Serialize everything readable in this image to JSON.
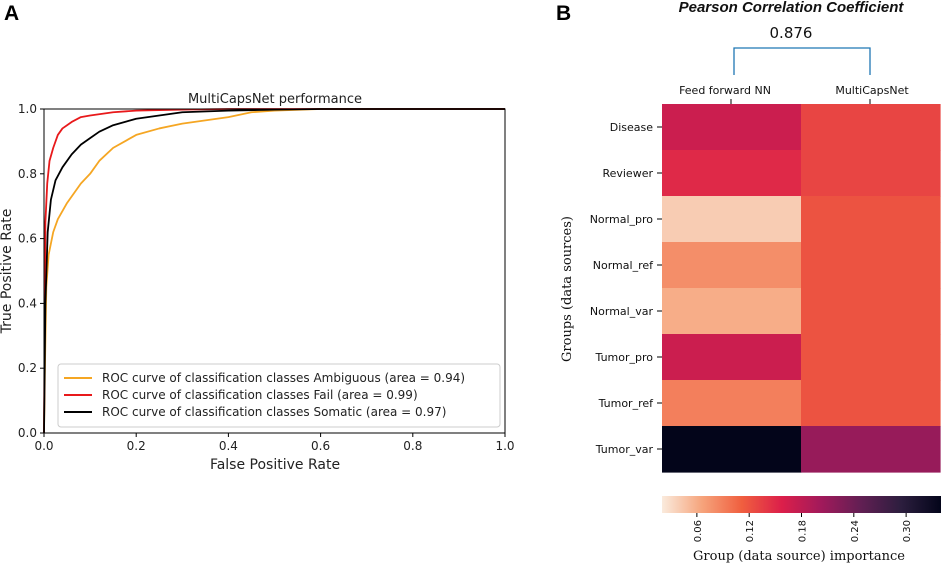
{
  "chart_data": [
    {
      "panel": "A",
      "type": "line",
      "title": "MultiCapsNet performance",
      "xlabel": "False Positive Rate",
      "ylabel": "True Positive Rate",
      "xlim": [
        0.0,
        1.0
      ],
      "ylim": [
        0.0,
        1.0
      ],
      "xticks": [
        "0.0",
        "0.2",
        "0.4",
        "0.6",
        "0.8",
        "1.0"
      ],
      "yticks": [
        "0.0",
        "0.2",
        "0.4",
        "0.6",
        "0.8",
        "1.0"
      ],
      "legend_position": "lower-right",
      "series": [
        {
          "name": "ROC curve of classification classes Ambiguous (area = 0.94)",
          "color": "#f5a623",
          "x": [
            0,
            0.002,
            0.005,
            0.01,
            0.02,
            0.03,
            0.05,
            0.08,
            0.1,
            0.12,
            0.15,
            0.2,
            0.25,
            0.3,
            0.35,
            0.4,
            0.45,
            0.5,
            0.6,
            0.7,
            1.0
          ],
          "y": [
            0,
            0.2,
            0.45,
            0.55,
            0.62,
            0.66,
            0.71,
            0.77,
            0.8,
            0.84,
            0.88,
            0.92,
            0.94,
            0.955,
            0.965,
            0.975,
            0.99,
            0.995,
            1.0,
            1.0,
            1.0
          ]
        },
        {
          "name": "ROC curve of classification classes Fail (area = 0.99)",
          "color": "#e8191b",
          "x": [
            0,
            0.003,
            0.007,
            0.012,
            0.02,
            0.03,
            0.04,
            0.06,
            0.08,
            0.1,
            0.15,
            0.2,
            0.3,
            0.4,
            1.0
          ],
          "y": [
            0,
            0.65,
            0.77,
            0.84,
            0.88,
            0.92,
            0.94,
            0.96,
            0.975,
            0.98,
            0.99,
            0.995,
            0.998,
            1.0,
            1.0
          ]
        },
        {
          "name": "ROC curve of classification classes Somatic (area = 0.97)",
          "color": "#000000",
          "x": [
            0,
            0.003,
            0.008,
            0.015,
            0.025,
            0.04,
            0.06,
            0.08,
            0.1,
            0.12,
            0.15,
            0.2,
            0.25,
            0.3,
            0.4,
            0.5,
            0.6,
            1.0
          ],
          "y": [
            0,
            0.4,
            0.62,
            0.72,
            0.78,
            0.82,
            0.86,
            0.89,
            0.91,
            0.93,
            0.95,
            0.97,
            0.98,
            0.99,
            0.995,
            0.998,
            1.0,
            1.0
          ]
        }
      ]
    },
    {
      "panel": "B",
      "type": "heatmap",
      "title": "Pearson Correlation Coefficient",
      "correlation_value": "0.876",
      "columns": [
        "Feed forward NN",
        "MultiCapsNet"
      ],
      "rows": [
        "Disease",
        "Reviewer",
        "Normal_pro",
        "Normal_ref",
        "Normal_var",
        "Tumor_pro",
        "Tumor_ref",
        "Tumor_var"
      ],
      "values": [
        [
          0.17,
          0.13
        ],
        [
          0.15,
          0.13
        ],
        [
          0.04,
          0.12
        ],
        [
          0.08,
          0.12
        ],
        [
          0.06,
          0.12
        ],
        [
          0.17,
          0.12
        ],
        [
          0.09,
          0.12
        ],
        [
          0.34,
          0.21
        ]
      ],
      "ylabel": "Groups  (data sources)",
      "colorbar_label": "Group (data source) importance",
      "colorbar_range": [
        0.02,
        0.34
      ],
      "colorbar_ticks": [
        "0.06",
        "0.12",
        "0.18",
        "0.24",
        "0.30"
      ],
      "colorbar_tick_values": [
        0.06,
        0.12,
        0.18,
        0.24,
        0.3
      ],
      "colormap": [
        "#faebdd",
        "#f6a47c",
        "#f05f3f",
        "#dc1f4a",
        "#a11a5b",
        "#611f53",
        "#2c1e3e",
        "#03051a"
      ]
    }
  ],
  "colors": {
    "dendrogram": "#1f77b4",
    "axis": "#000000"
  }
}
